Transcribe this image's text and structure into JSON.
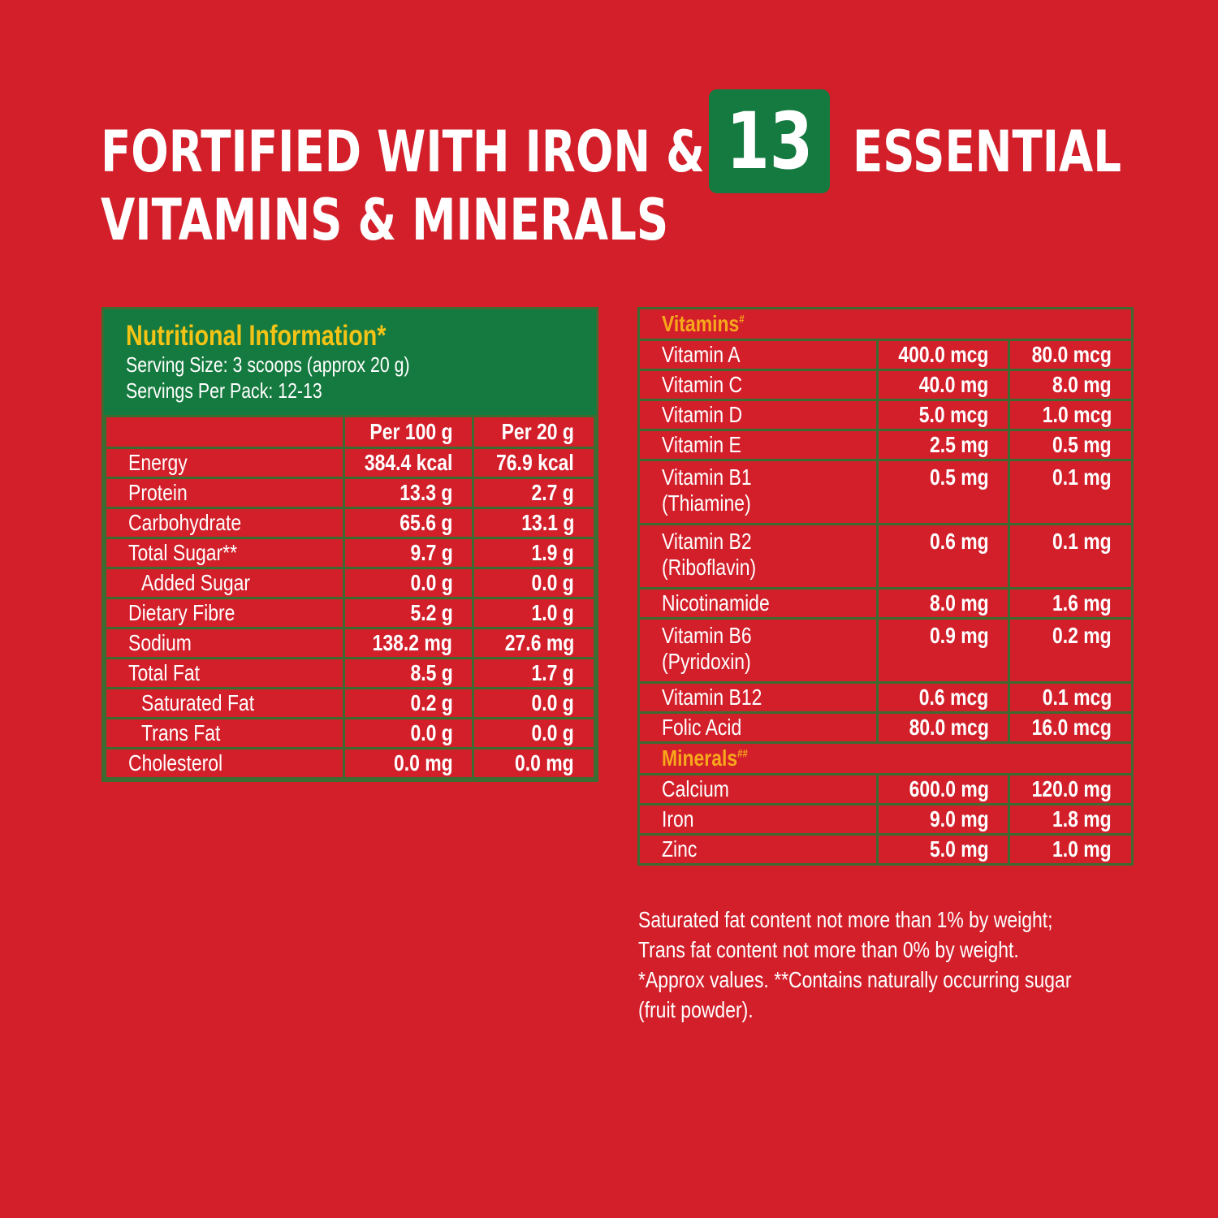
{
  "title": {
    "line1": "FORTIFIED WITH IRON &",
    "badge": "13",
    "line1_end": "ESSENTIAL",
    "line2": "VITAMINS & MINERALS"
  },
  "colors": {
    "background": "#d21f2a",
    "green": "#157a3f",
    "heading_yellow": "#f3c316",
    "section_orange": "#f7a81b"
  },
  "nutrition": {
    "heading": "Nutritional Information*",
    "serving_size": "Serving Size: 3 scoops (approx 20 g)",
    "servings_per_pack": "Servings Per Pack: 12-13",
    "columns": [
      "",
      "Per 100 g",
      "Per 20 g"
    ],
    "rows": [
      {
        "name": "Energy",
        "per100": "384.4 kcal",
        "per20": "76.9 kcal"
      },
      {
        "name": "Protein",
        "per100": "13.3 g",
        "per20": "2.7 g"
      },
      {
        "name": "Carbohydrate",
        "per100": "65.6 g",
        "per20": "13.1 g"
      },
      {
        "name": "Total Sugar**",
        "per100": "9.7 g",
        "per20": "1.9 g"
      },
      {
        "name": "Added Sugar",
        "per100": "0.0 g",
        "per20": "0.0 g",
        "sub": true
      },
      {
        "name": "Dietary Fibre",
        "per100": "5.2 g",
        "per20": "1.0 g"
      },
      {
        "name": "Sodium",
        "per100": "138.2 mg",
        "per20": "27.6 mg"
      },
      {
        "name": "Total Fat",
        "per100": "8.5 g",
        "per20": "1.7 g"
      },
      {
        "name": "Saturated Fat",
        "per100": "0.2 g",
        "per20": "0.0 g",
        "sub": true
      },
      {
        "name": "Trans Fat",
        "per100": "0.0 g",
        "per20": "0.0 g",
        "sub": true
      },
      {
        "name": "Cholesterol",
        "per100": "0.0 mg",
        "per20": "0.0 mg"
      }
    ]
  },
  "micros": {
    "vitamins_label": "Vitamins",
    "vitamins_mark": "#",
    "vitamins": [
      {
        "name": "Vitamin A",
        "per100": "400.0 mcg",
        "per20": "80.0 mcg"
      },
      {
        "name": "Vitamin C",
        "per100": "40.0 mg",
        "per20": "8.0 mg"
      },
      {
        "name": "Vitamin D",
        "per100": "5.0 mcg",
        "per20": "1.0 mcg"
      },
      {
        "name": "Vitamin E",
        "per100": "2.5 mg",
        "per20": "0.5 mg"
      },
      {
        "name": "Vitamin B1",
        "name2": "(Thiamine)",
        "per100": "0.5 mg",
        "per20": "0.1 mg"
      },
      {
        "name": "Vitamin B2",
        "name2": "(Riboflavin)",
        "per100": "0.6 mg",
        "per20": "0.1 mg"
      },
      {
        "name": "Nicotinamide",
        "per100": "8.0 mg",
        "per20": "1.6 mg"
      },
      {
        "name": "Vitamin B6",
        "name2": "(Pyridoxin)",
        "per100": "0.9 mg",
        "per20": "0.2 mg"
      },
      {
        "name": "Vitamin B12",
        "per100": "0.6 mcg",
        "per20": "0.1 mcg"
      },
      {
        "name": "Folic Acid",
        "per100": "80.0 mcg",
        "per20": "16.0 mcg"
      }
    ],
    "minerals_label": "Minerals",
    "minerals_mark": "##",
    "minerals": [
      {
        "name": "Calcium",
        "per100": "600.0 mg",
        "per20": "120.0 mg"
      },
      {
        "name": "Iron",
        "per100": "9.0 mg",
        "per20": "1.8 mg"
      },
      {
        "name": "Zinc",
        "per100": "5.0 mg",
        "per20": "1.0 mg"
      }
    ]
  },
  "footnotes": [
    "Saturated fat content not more than 1% by weight;",
    "Trans fat content not more than 0% by weight.",
    "*Approx values. **Contains naturally occurring sugar",
    "(fruit powder)."
  ]
}
